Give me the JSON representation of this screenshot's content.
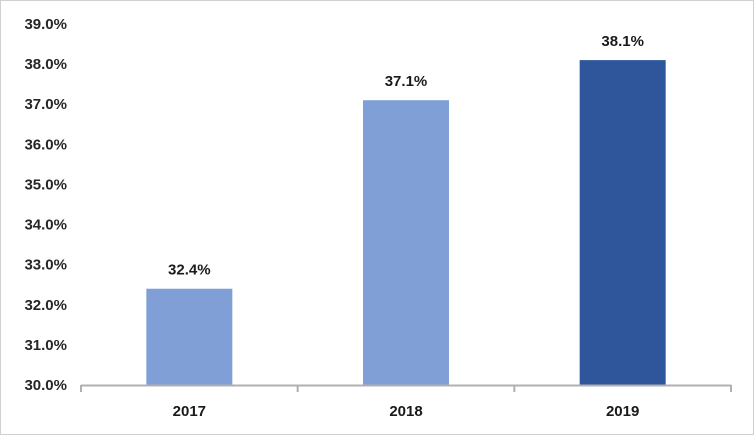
{
  "chart_data": {
    "type": "bar",
    "categories": [
      "2017",
      "2018",
      "2019"
    ],
    "values": [
      32.4,
      37.1,
      38.1
    ],
    "value_labels": [
      "32.4%",
      "37.1%",
      "38.1%"
    ],
    "bar_colors": [
      "#7f9fd6",
      "#7f9fd6",
      "#2f559a"
    ],
    "axis_color": "#b0b0b0",
    "title": "",
    "xlabel": "",
    "ylabel": "",
    "ylim": [
      30.0,
      39.0
    ],
    "yticks": [
      30.0,
      31.0,
      32.0,
      33.0,
      34.0,
      35.0,
      36.0,
      37.0,
      38.0,
      39.0
    ],
    "ytick_labels": [
      "30.0%",
      "31.0%",
      "32.0%",
      "33.0%",
      "34.0%",
      "35.0%",
      "36.0%",
      "37.0%",
      "38.0%",
      "39.0%"
    ],
    "grid": false,
    "legend": "none"
  }
}
